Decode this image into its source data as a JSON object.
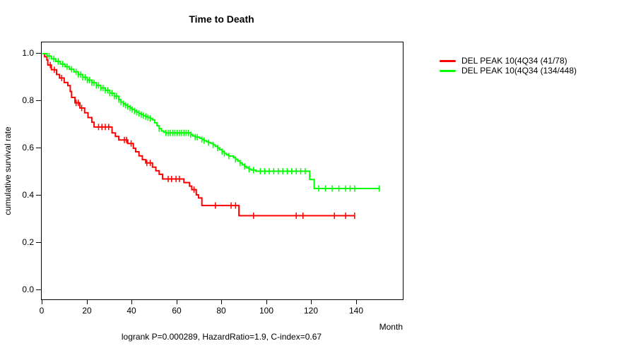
{
  "chart_data": {
    "type": "line",
    "subtype": "kaplan-meier-step-survival",
    "title": "Time to Death",
    "xlabel": "Month",
    "ylabel": "cumulative survival rate",
    "footnote": "logrank P=0.000289, HazardRatio=1.9, C-index=0.67",
    "xlim": [
      0,
      160
    ],
    "ylim": [
      0,
      1.0
    ],
    "x_ticks": [
      0,
      20,
      40,
      60,
      80,
      100,
      120,
      140
    ],
    "y_ticks": [
      "0.0",
      "0.2",
      "0.4",
      "0.6",
      "0.8",
      "1.0"
    ],
    "grid": false,
    "legend_position": "right-outside",
    "axis_color": "#000000",
    "background_color": "#ffffff",
    "series": [
      {
        "name": "DEL PEAK 10(4Q34 (41/78)",
        "color": "#ff0000",
        "steps": [
          [
            0,
            1.0
          ],
          [
            1,
            0.987
          ],
          [
            2,
            0.973
          ],
          [
            2.4,
            0.952
          ],
          [
            4,
            0.932
          ],
          [
            6.3,
            0.912
          ],
          [
            7.6,
            0.897
          ],
          [
            9.7,
            0.878
          ],
          [
            11.3,
            0.865
          ],
          [
            12.4,
            0.84
          ],
          [
            13,
            0.815
          ],
          [
            14.5,
            0.792
          ],
          [
            16.7,
            0.77
          ],
          [
            18.8,
            0.75
          ],
          [
            20.3,
            0.73
          ],
          [
            22,
            0.71
          ],
          [
            23,
            0.69
          ],
          [
            31,
            0.665
          ],
          [
            32.5,
            0.65
          ],
          [
            34,
            0.635
          ],
          [
            38,
            0.62
          ],
          [
            40.5,
            0.6
          ],
          [
            41.5,
            0.585
          ],
          [
            43,
            0.568
          ],
          [
            44.5,
            0.552
          ],
          [
            46,
            0.538
          ],
          [
            49,
            0.52
          ],
          [
            50.5,
            0.505
          ],
          [
            52,
            0.49
          ],
          [
            53.5,
            0.47
          ],
          [
            63,
            0.455
          ],
          [
            65.5,
            0.44
          ],
          [
            66.5,
            0.425
          ],
          [
            68.5,
            0.403
          ],
          [
            69.5,
            0.39
          ],
          [
            71,
            0.358
          ],
          [
            87.5,
            0.315
          ],
          [
            139,
            0.315
          ]
        ],
        "censor_times": [
          3.5,
          5.3,
          8.6,
          15,
          16,
          17.5,
          25,
          26.5,
          28,
          29.5,
          36.5,
          37.5,
          39.5,
          46.5,
          48,
          56,
          57.5,
          59.5,
          61,
          67.5,
          77,
          84,
          86,
          94,
          113,
          116,
          130,
          135,
          139
        ]
      },
      {
        "name": "DEL PEAK 10(4Q34 (134/448)",
        "color": "#00ff00",
        "steps": [
          [
            0,
            1.0
          ],
          [
            2,
            0.99
          ],
          [
            4,
            0.978
          ],
          [
            6,
            0.967
          ],
          [
            8,
            0.956
          ],
          [
            10,
            0.945
          ],
          [
            12,
            0.934
          ],
          [
            14,
            0.923
          ],
          [
            16,
            0.912
          ],
          [
            18,
            0.9
          ],
          [
            20,
            0.888
          ],
          [
            22,
            0.877
          ],
          [
            24,
            0.866
          ],
          [
            26,
            0.855
          ],
          [
            28,
            0.845
          ],
          [
            30,
            0.833
          ],
          [
            32,
            0.82
          ],
          [
            34,
            0.806
          ],
          [
            35,
            0.795
          ],
          [
            36,
            0.788
          ],
          [
            37,
            0.782
          ],
          [
            38,
            0.776
          ],
          [
            39,
            0.77
          ],
          [
            40,
            0.764
          ],
          [
            41,
            0.758
          ],
          [
            42,
            0.752
          ],
          [
            43,
            0.747
          ],
          [
            44,
            0.742
          ],
          [
            45,
            0.738
          ],
          [
            46,
            0.734
          ],
          [
            47,
            0.73
          ],
          [
            48,
            0.726
          ],
          [
            49,
            0.72
          ],
          [
            50,
            0.708
          ],
          [
            51,
            0.695
          ],
          [
            52,
            0.683
          ],
          [
            53,
            0.673
          ],
          [
            54,
            0.668
          ],
          [
            55,
            0.665
          ],
          [
            66,
            0.658
          ],
          [
            67,
            0.652
          ],
          [
            68,
            0.647
          ],
          [
            70,
            0.642
          ],
          [
            71,
            0.637
          ],
          [
            72,
            0.632
          ],
          [
            73,
            0.628
          ],
          [
            74,
            0.624
          ],
          [
            75,
            0.62
          ],
          [
            76,
            0.614
          ],
          [
            77,
            0.608
          ],
          [
            78,
            0.601
          ],
          [
            79,
            0.594
          ],
          [
            80,
            0.586
          ],
          [
            81,
            0.578
          ],
          [
            82,
            0.572
          ],
          [
            83,
            0.567
          ],
          [
            85,
            0.56
          ],
          [
            86,
            0.553
          ],
          [
            87,
            0.546
          ],
          [
            88,
            0.538
          ],
          [
            89,
            0.53
          ],
          [
            90,
            0.523
          ],
          [
            91,
            0.517
          ],
          [
            92,
            0.512
          ],
          [
            93,
            0.508
          ],
          [
            95,
            0.503
          ],
          [
            119,
            0.468
          ],
          [
            121,
            0.43
          ],
          [
            150,
            0.43
          ]
        ],
        "censor_times": [
          3,
          5,
          7,
          9,
          11,
          13,
          15,
          16,
          17,
          18,
          19,
          20,
          21,
          22,
          23,
          24,
          25,
          26,
          27,
          28,
          29,
          30,
          31,
          32,
          33,
          34,
          35,
          36,
          37,
          38,
          39,
          40,
          41,
          42,
          43,
          44,
          45,
          46,
          47,
          48,
          52,
          55,
          56,
          57,
          58,
          59,
          60,
          61,
          62,
          63,
          64,
          65,
          66,
          68,
          69,
          71,
          72,
          74,
          76,
          78,
          80,
          81,
          83,
          86,
          88,
          90,
          92,
          94,
          97,
          99,
          101,
          103,
          105,
          107,
          109,
          111,
          113,
          115,
          117,
          123,
          126,
          129,
          132,
          135,
          137,
          139,
          150
        ]
      }
    ]
  }
}
